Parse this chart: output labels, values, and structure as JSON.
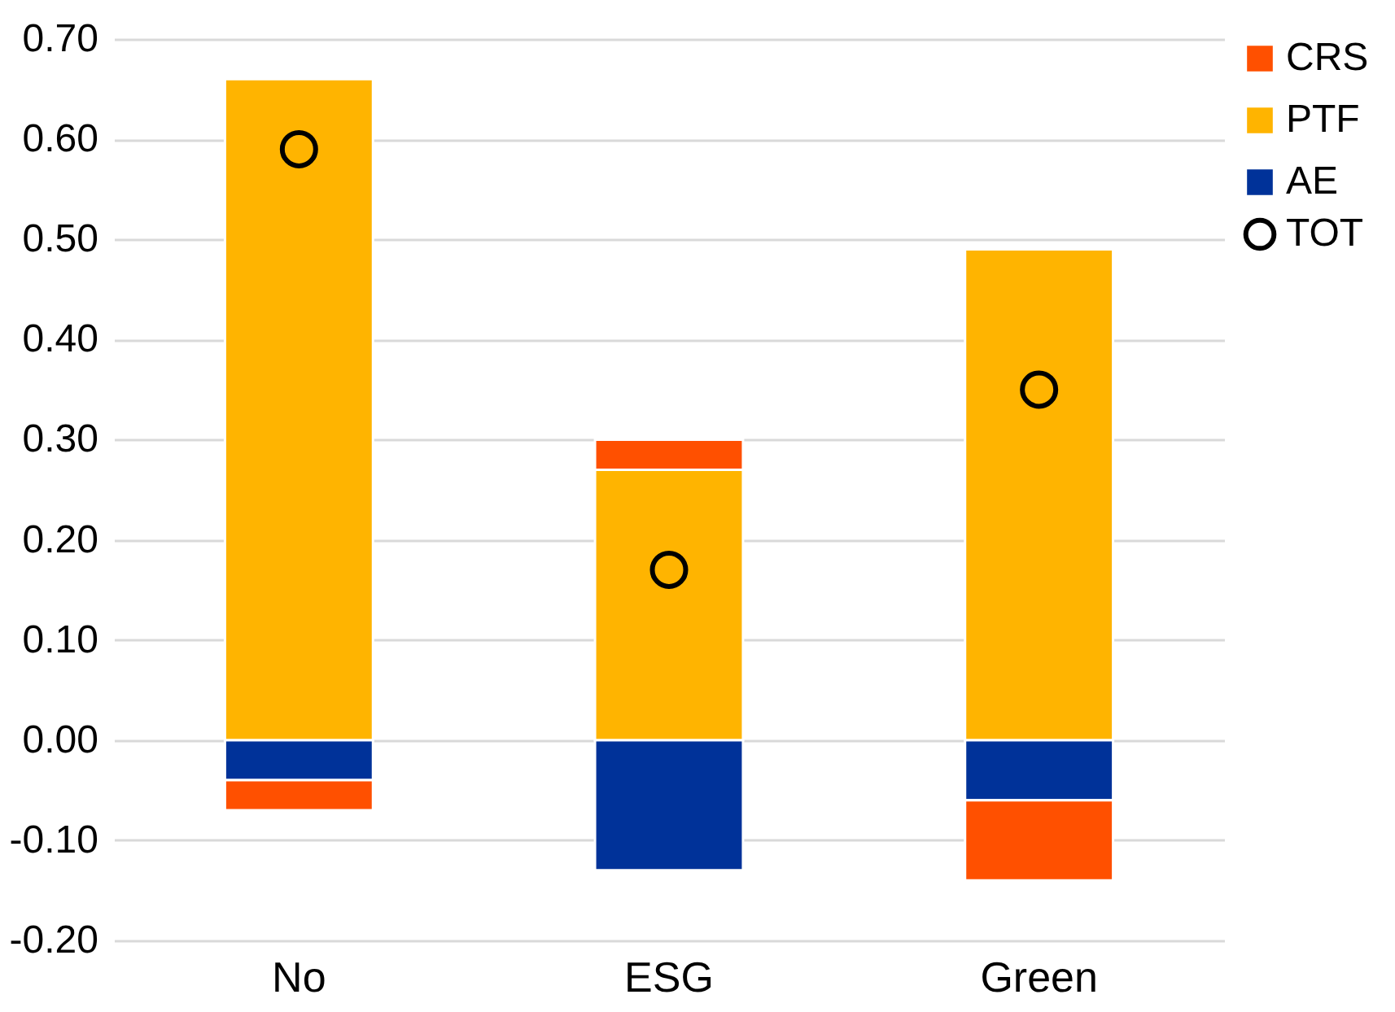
{
  "chart_data": {
    "type": "bar",
    "stacked": true,
    "categories": [
      "No",
      "ESG",
      "Green"
    ],
    "series": [
      {
        "name": "AE",
        "color": "#003299",
        "values": [
          -0.04,
          -0.13,
          -0.06
        ]
      },
      {
        "name": "PTF",
        "color": "#ffb400",
        "values": [
          0.66,
          0.27,
          0.49
        ]
      },
      {
        "name": "CRS",
        "color": "#ff5000",
        "values": [
          -0.03,
          0.03,
          -0.08
        ]
      },
      {
        "name": "TOT",
        "type": "scatter",
        "marker": "circle",
        "color": "#000000",
        "x": [
          "No",
          "ESG",
          "Green"
        ],
        "values": [
          0.59,
          0.17,
          0.35
        ]
      }
    ],
    "ylim": [
      -0.2,
      0.7
    ],
    "yticks": [
      {
        "value": -0.2,
        "label": "-0.20"
      },
      {
        "value": -0.1,
        "label": "-0.10"
      },
      {
        "value": 0,
        "label": "0.00"
      },
      {
        "value": 0.1,
        "label": "0.10"
      },
      {
        "value": 0.2,
        "label": "0.20"
      },
      {
        "value": 0.3,
        "label": "0.30"
      },
      {
        "value": 0.4,
        "label": "0.40"
      },
      {
        "value": 0.5,
        "label": "0.50"
      },
      {
        "value": 0.6,
        "label": "0.60"
      },
      {
        "value": 0.7,
        "label": "0.70"
      }
    ],
    "grid": "y",
    "legend": "right"
  }
}
